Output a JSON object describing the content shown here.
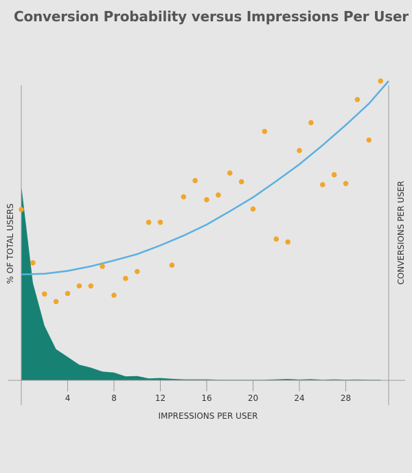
{
  "chart_data": {
    "type": "scatter",
    "title": "Conversion Probability versus Impressions Per User",
    "xlabel": "IMPRESSIONS PER USER",
    "ylabel_left": "% OF TOTAL USERS",
    "ylabel_right": "CONVERSIONS PER USER",
    "xlim": [
      0,
      31.7
    ],
    "xticks": [
      4,
      8,
      12,
      16,
      20,
      24,
      28
    ],
    "grid": false,
    "colors": {
      "points": "#f0a62b",
      "trend": "#5ab0e0",
      "area": "#178273",
      "axis": "#999999"
    },
    "series": [
      {
        "kind": "area",
        "x": [
          0,
          1,
          2,
          3,
          4,
          5,
          6,
          7,
          8,
          9,
          10,
          11,
          12,
          13,
          14,
          15,
          16,
          17,
          18,
          19,
          20,
          21,
          22,
          23,
          24,
          25,
          26,
          27,
          28,
          29,
          30,
          31
        ],
        "y": [
          100,
          50,
          28,
          16,
          12,
          8,
          6.5,
          4.5,
          4,
          2,
          2.2,
          1,
          1.2,
          0.8,
          0.5,
          0.5,
          0.5,
          0.3,
          0.3,
          0.3,
          0.3,
          0.3,
          0.5,
          0.7,
          0.4,
          0.6,
          0.3,
          0.5,
          0.3,
          0.4,
          0.3,
          0.3
        ]
      },
      {
        "kind": "scatter",
        "x": [
          0,
          1,
          2,
          3,
          4,
          5,
          6,
          7,
          8,
          9,
          10,
          11,
          12,
          13,
          14,
          15,
          16,
          17,
          18,
          19,
          20,
          21,
          22,
          23,
          24,
          25,
          26,
          27,
          28,
          29,
          30,
          31
        ],
        "y": [
          29.5,
          20.3,
          14.9,
          13.6,
          15.0,
          16.3,
          16.3,
          19.7,
          14.7,
          17.6,
          18.8,
          27.3,
          27.3,
          19.9,
          31.7,
          34.5,
          31.2,
          32.0,
          35.8,
          34.3,
          29.6,
          43.0,
          24.4,
          23.9,
          39.7,
          44.5,
          33.8,
          35.5,
          34.0,
          48.5,
          41.5,
          51.7
        ]
      },
      {
        "kind": "line",
        "x": [
          0,
          2,
          4,
          6,
          8,
          10,
          12,
          14,
          16,
          18,
          20,
          22,
          24,
          26,
          28,
          30,
          31.7
        ],
        "y": [
          18.3,
          18.4,
          18.9,
          19.7,
          20.7,
          21.8,
          23.3,
          25.0,
          26.9,
          29.2,
          31.6,
          34.4,
          37.3,
          40.6,
          44.1,
          47.8,
          51.7
        ]
      }
    ]
  }
}
